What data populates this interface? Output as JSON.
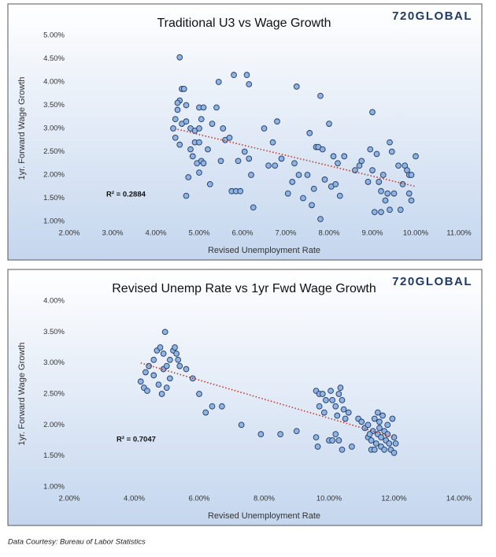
{
  "chart_data": [
    {
      "type": "scatter",
      "title": "Traditional U3 vs Wage Growth",
      "logo": "720GLOBAL",
      "x_label": "Revised Unemployment Rate",
      "y_label": "1yr. Forward Wage Growth",
      "annotation": "R² = 0.2884",
      "color": "#8fb4e3",
      "edge_color": "#1f3864",
      "x": [
        4.55,
        4.55,
        4.5,
        4.6,
        4.65,
        4.7,
        4.5,
        4.45,
        4.4,
        4.45,
        4.6,
        4.7,
        4.8,
        4.9,
        5.0,
        5.0,
        5.1,
        5.05,
        4.9,
        5.0,
        4.85,
        4.95,
        5.05,
        5.1,
        4.75,
        4.7,
        4.55,
        4.8,
        5.0,
        5.2,
        5.3,
        5.25,
        5.4,
        5.45,
        5.5,
        5.55,
        5.6,
        5.7,
        5.8,
        5.75,
        5.85,
        5.9,
        5.95,
        6.05,
        6.1,
        6.15,
        6.15,
        6.2,
        6.25,
        6.5,
        6.6,
        6.7,
        6.75,
        6.8,
        6.9,
        7.15,
        7.2,
        7.25,
        7.3,
        7.4,
        7.5,
        7.55,
        7.6,
        7.65,
        7.7,
        7.75,
        7.8,
        7.8,
        7.85,
        7.9,
        8.0,
        8.05,
        8.1,
        8.15,
        8.2,
        8.25,
        8.35,
        8.6,
        8.7,
        8.75,
        8.9,
        8.95,
        9.0,
        9.0,
        9.05,
        9.1,
        9.15,
        9.2,
        9.25,
        9.3,
        9.35,
        9.4,
        9.4,
        9.45,
        9.5,
        9.6,
        9.65,
        9.75,
        9.8,
        9.85,
        9.85,
        9.9,
        9.9,
        10.0,
        9.7,
        9.2,
        7.05
      ],
      "values": [
        4.53,
        3.6,
        3.55,
        3.85,
        3.85,
        3.5,
        3.4,
        3.2,
        3.0,
        2.8,
        3.1,
        3.15,
        3.0,
        2.95,
        3.0,
        3.45,
        3.45,
        3.2,
        2.7,
        2.7,
        2.4,
        2.25,
        2.3,
        2.25,
        1.95,
        1.55,
        2.65,
        2.55,
        2.05,
        2.55,
        3.1,
        1.8,
        3.45,
        4.0,
        2.3,
        3.0,
        2.75,
        2.8,
        4.15,
        1.65,
        1.65,
        2.3,
        1.65,
        2.5,
        4.15,
        3.95,
        2.35,
        2.0,
        1.3,
        3.0,
        2.2,
        2.7,
        2.2,
        3.15,
        2.35,
        1.85,
        2.25,
        3.9,
        2.0,
        1.5,
        2.0,
        2.9,
        1.35,
        1.7,
        2.6,
        2.6,
        3.7,
        1.05,
        2.55,
        1.9,
        3.1,
        1.75,
        2.4,
        1.8,
        2.25,
        1.55,
        2.4,
        2.1,
        2.2,
        2.3,
        1.85,
        2.55,
        3.35,
        2.1,
        1.2,
        2.45,
        1.85,
        1.2,
        2.0,
        1.45,
        1.6,
        2.7,
        1.25,
        2.5,
        1.6,
        2.2,
        1.25,
        2.2,
        2.1,
        2.0,
        1.6,
        1.45,
        2.0,
        2.4,
        1.8,
        1.65,
        1.6
      ],
      "trendline": {
        "color": "#c0392b",
        "x": [
          4.5,
          10.0
        ],
        "values": [
          2.98,
          1.75
        ]
      },
      "xlim": [
        2,
        11
      ],
      "ylim": [
        1,
        5
      ],
      "xticks": [
        {
          "value": 2,
          "label": "2.00%"
        },
        {
          "value": 3,
          "label": "3.00%"
        },
        {
          "value": 4,
          "label": "4.00%"
        },
        {
          "value": 5,
          "label": "5.00%"
        },
        {
          "value": 6,
          "label": "6.00%"
        },
        {
          "value": 7,
          "label": "7.00%"
        },
        {
          "value": 8,
          "label": "8.00%"
        },
        {
          "value": 9,
          "label": "9.00%"
        },
        {
          "value": 10,
          "label": "10.00%"
        },
        {
          "value": 11,
          "label": "11.00%"
        }
      ],
      "yticks": [
        {
          "value": 1,
          "label": "1.00%"
        },
        {
          "value": 1.5,
          "label": "1.50%"
        },
        {
          "value": 2,
          "label": "2.00%"
        },
        {
          "value": 2.5,
          "label": "2.50%"
        },
        {
          "value": 3,
          "label": "3.00%"
        },
        {
          "value": 3.5,
          "label": "3.50%"
        },
        {
          "value": 4,
          "label": "4.00%"
        },
        {
          "value": 4.5,
          "label": "4.50%"
        },
        {
          "value": 5,
          "label": "5.00%"
        }
      ]
    },
    {
      "type": "scatter",
      "title": "Revised Unemp Rate vs 1yr Fwd Wage Growth",
      "logo": "720GLOBAL",
      "x_label": "Revised Unemployment Rate",
      "y_label": "1yr. Forward Wage Growth",
      "annotation": "R² = 0.7047",
      "color": "#8fb4e3",
      "edge_color": "#1f3864",
      "x": [
        4.2,
        4.3,
        4.4,
        4.35,
        4.45,
        4.6,
        4.6,
        4.7,
        4.75,
        4.8,
        4.9,
        4.95,
        4.9,
        4.85,
        5.0,
        5.0,
        5.1,
        5.2,
        5.25,
        5.3,
        5.35,
        5.4,
        5.1,
        5.6,
        5.8,
        6.0,
        6.2,
        6.4,
        6.7,
        7.3,
        7.9,
        8.5,
        9.0,
        9.6,
        9.6,
        9.7,
        9.8,
        9.7,
        9.85,
        9.9,
        10.0,
        10.05,
        10.1,
        10.2,
        10.25,
        10.3,
        10.35,
        10.4,
        10.45,
        10.5,
        10.4,
        10.3,
        10.6,
        10.7,
        10.9,
        11.0,
        11.1,
        11.2,
        11.2,
        11.3,
        11.3,
        11.35,
        11.4,
        11.45,
        11.5,
        11.5,
        11.55,
        11.6,
        11.6,
        11.65,
        11.7,
        11.7,
        11.75,
        11.8,
        11.8,
        11.85,
        11.9,
        11.95,
        12.0,
        12.0,
        12.05,
        11.4,
        11.55,
        11.25,
        10.2,
        10.1,
        9.65
      ],
      "values": [
        2.7,
        2.6,
        2.55,
        2.85,
        2.95,
        2.8,
        3.05,
        3.2,
        2.65,
        3.25,
        3.15,
        3.5,
        2.9,
        2.5,
        2.6,
        2.95,
        3.05,
        3.2,
        3.25,
        3.15,
        3.05,
        2.95,
        2.75,
        2.9,
        2.75,
        2.5,
        2.2,
        2.3,
        2.3,
        2.0,
        1.85,
        1.85,
        1.9,
        1.8,
        2.55,
        2.5,
        2.5,
        2.3,
        2.2,
        2.4,
        1.75,
        2.55,
        2.4,
        2.3,
        2.15,
        2.5,
        2.6,
        2.4,
        2.25,
        2.1,
        1.6,
        1.75,
        2.2,
        1.65,
        2.1,
        2.05,
        1.95,
        1.8,
        2.0,
        1.75,
        1.6,
        1.9,
        2.1,
        1.7,
        1.85,
        2.2,
        1.95,
        1.65,
        1.8,
        2.15,
        1.9,
        1.6,
        1.75,
        2.0,
        1.85,
        1.7,
        1.6,
        2.1,
        1.8,
        1.55,
        1.7,
        1.6,
        2.05,
        1.85,
        1.85,
        1.75,
        1.65
      ],
      "trendline": {
        "color": "#c0392b",
        "x": [
          4.2,
          12.0
        ],
        "values": [
          3.0,
          1.8
        ]
      },
      "xlim": [
        2,
        14
      ],
      "ylim": [
        1,
        4
      ],
      "xticks": [
        {
          "value": 2,
          "label": "2.00%"
        },
        {
          "value": 4,
          "label": "4.00%"
        },
        {
          "value": 6,
          "label": "6.00%"
        },
        {
          "value": 8,
          "label": "8.00%"
        },
        {
          "value": 10,
          "label": "10.00%"
        },
        {
          "value": 12,
          "label": "12.00%"
        },
        {
          "value": 14,
          "label": "14.00%"
        }
      ],
      "yticks": [
        {
          "value": 1,
          "label": "1.00%"
        },
        {
          "value": 1.5,
          "label": "1.50%"
        },
        {
          "value": 2,
          "label": "2.00%"
        },
        {
          "value": 2.5,
          "label": "2.50%"
        },
        {
          "value": 3,
          "label": "3.00%"
        },
        {
          "value": 3.5,
          "label": "3.50%"
        },
        {
          "value": 4,
          "label": "4.00%"
        }
      ]
    }
  ],
  "footer": "Data Courtesy: Bureau of Labor Statistics"
}
